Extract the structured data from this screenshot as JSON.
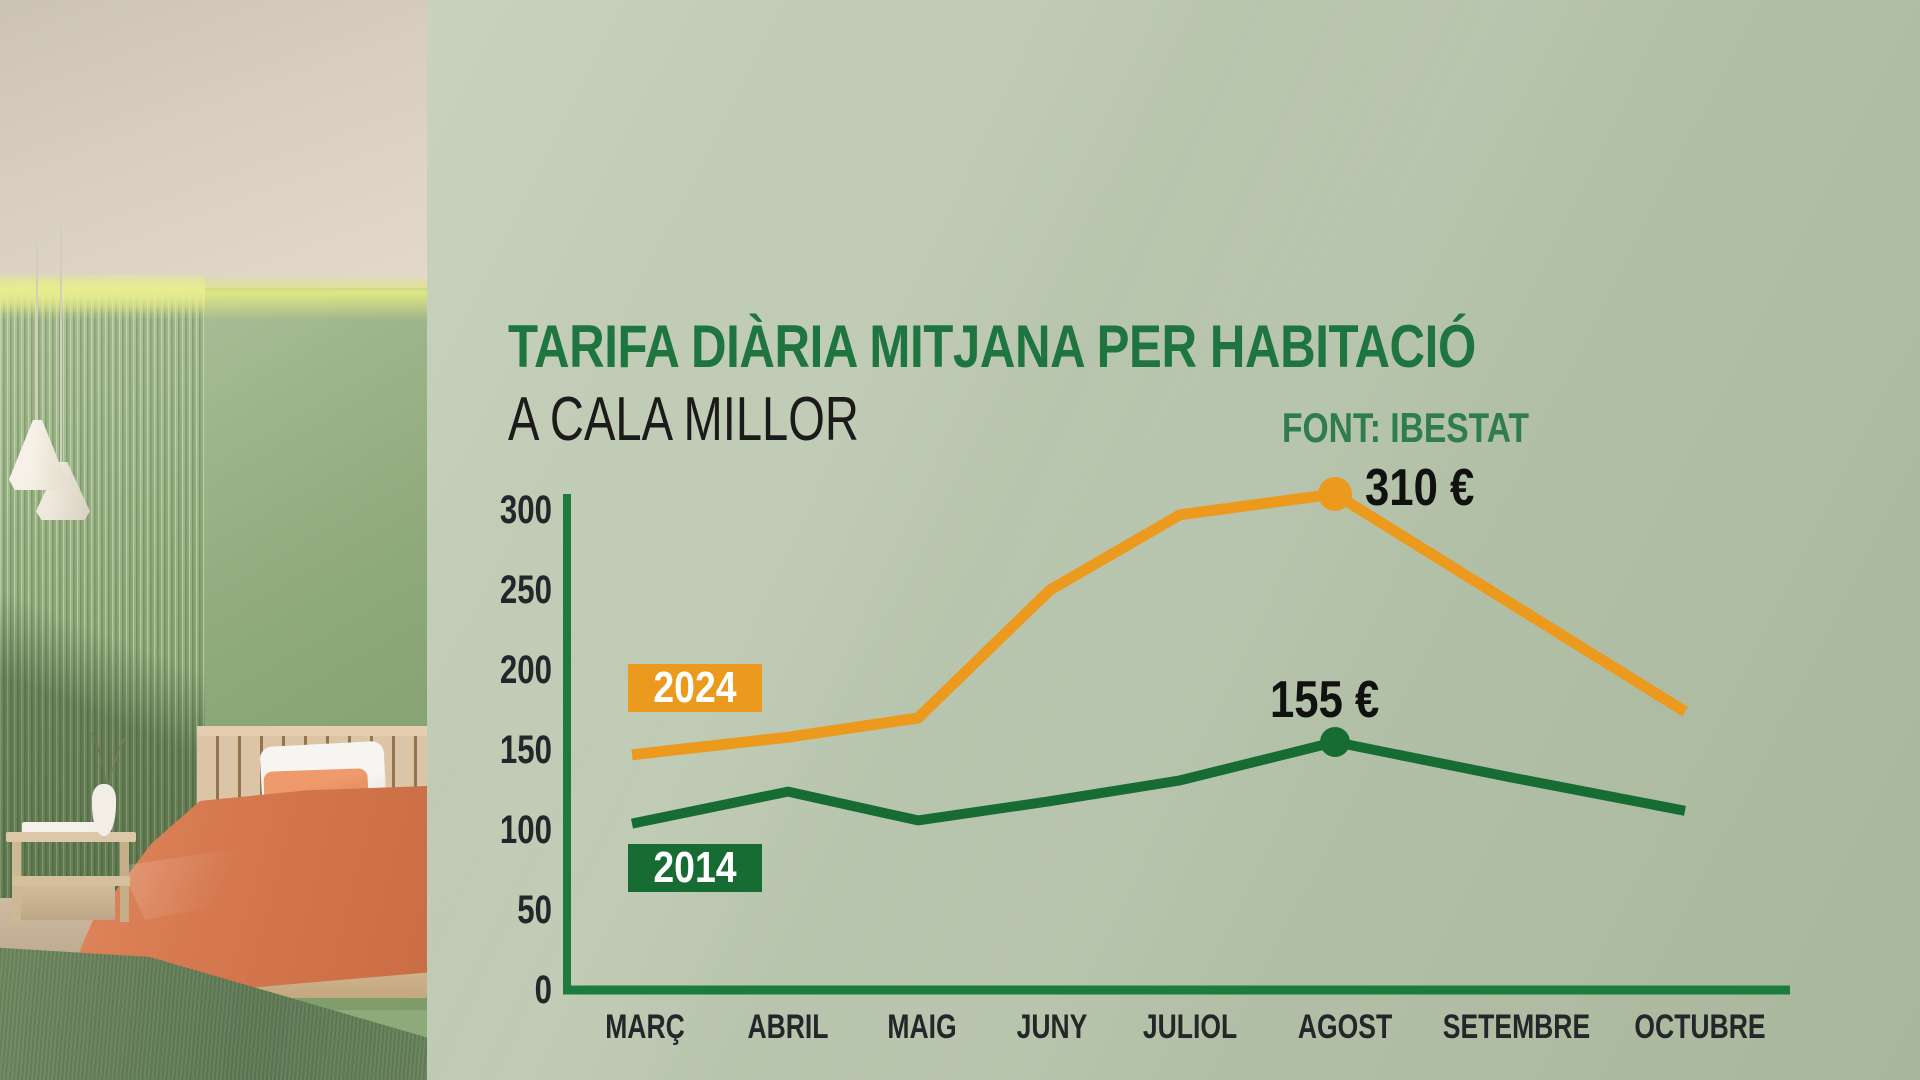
{
  "header": {
    "title": "TARIFA DIÀRIA MITJANA PER HABITACIÓ",
    "subtitle": "A CALA MILLOR",
    "source": "FONT: IBESTAT"
  },
  "chart_data": {
    "type": "line",
    "title": "TARIFA DIÀRIA MITJANA PER HABITACIÓ A CALA MILLOR",
    "source": "FONT: IBESTAT",
    "categories": [
      "MARÇ",
      "ABRIL",
      "MAIG",
      "JUNY",
      "JULIOL",
      "AGOST",
      "SETEMBRE",
      "OCTUBRE"
    ],
    "series": [
      {
        "name": "2024",
        "color": "#ec9a1e",
        "values": [
          147,
          158,
          170,
          250,
          297,
          310,
          242,
          174
        ],
        "peak_index": 5,
        "peak_value": 310,
        "peak_label": "310 €"
      },
      {
        "name": "2014",
        "color": "#166c33",
        "values": [
          104,
          124,
          106,
          118,
          131,
          155,
          133,
          112
        ],
        "peak_index": 5,
        "peak_value": 155,
        "peak_label": "155 €"
      }
    ],
    "yticks": [
      0,
      50,
      100,
      150,
      200,
      250,
      300
    ],
    "ylim": [
      0,
      300
    ],
    "xlabel": "",
    "ylabel": "",
    "grid": false,
    "legend_position": "on-chart badges (2024 orange above line, 2014 green below line)"
  },
  "colors": {
    "panel_background": "#b7c3ac",
    "title_green": "#1e7540",
    "source_green": "#2f7d4e",
    "axis_green": "#1b7c3d",
    "orange_2024": "#ec9a1e",
    "green_2014": "#166c33",
    "tick_text": "#24272a",
    "annotation_text": "#101210",
    "badge_text": "#ffffff"
  }
}
